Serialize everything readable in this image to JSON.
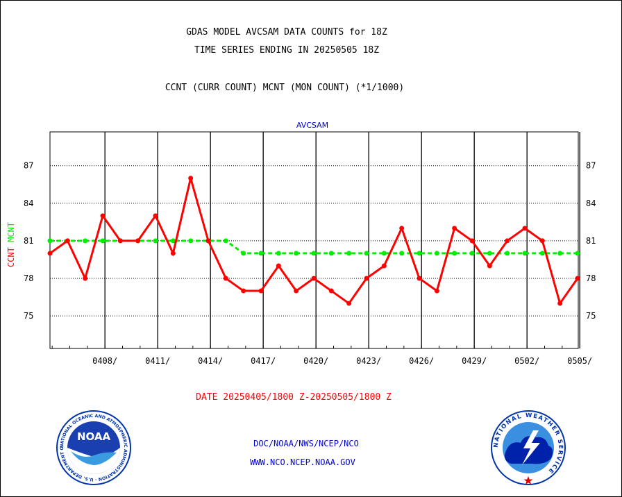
{
  "header": {
    "title_line1": "GDAS MODEL AVCSAM DATA COUNTS for 18Z",
    "title_line2": "TIME SERIES ENDING IN 20250505 18Z",
    "subtitle": "CCNT (CURR COUNT) MCNT (MON COUNT) (*1/1000)"
  },
  "footer": {
    "date_range": "DATE 20250405/1800 Z-20250505/1800 Z",
    "org_line": "DOC/NOAA/NWS/NCEP/NCO",
    "url_line": "WWW.NCO.NCEP.NOAA.GOV"
  },
  "logos": {
    "noaa": {
      "name": "NOAA",
      "ring_text": "NATIONAL OCEANIC AND ATMOSPHERIC ADMINISTRATION · U.S. DEPARTMENT OF COMMERCE"
    },
    "nws": {
      "ring_text": "NATIONAL WEATHER SERVICE"
    }
  },
  "chart_data": {
    "type": "line",
    "title": "AVCSAM",
    "ylabel_ccnt": "CCNT",
    "ylabel_mcnt": "MCNT",
    "ylim": [
      72.4,
      89.7
    ],
    "yticks": [
      75,
      78,
      81,
      84,
      87
    ],
    "x_tick_labels": [
      "0408/",
      "0411/",
      "0414/",
      "0417/",
      "0420/",
      "0423/",
      "0426/",
      "0429/",
      "0502/",
      "0505/"
    ],
    "x_days": [
      "0405",
      "0406",
      "0407",
      "0408",
      "0409",
      "0410",
      "0411",
      "0412",
      "0413",
      "0414",
      "0415",
      "0416",
      "0417",
      "0418",
      "0419",
      "0420",
      "0421",
      "0422",
      "0423",
      "0424",
      "0425",
      "0426",
      "0427",
      "0428",
      "0429",
      "0430",
      "0501",
      "0502",
      "0503",
      "0504",
      "0505"
    ],
    "grid": true,
    "colors": {
      "ccnt": "#ff0000",
      "mcnt": "#00ee00",
      "axes": "#000000",
      "title": "#0000cc"
    },
    "series": [
      {
        "name": "CCNT",
        "values": [
          80,
          81,
          78,
          83,
          81,
          81,
          83,
          80,
          86,
          81,
          78,
          77,
          77,
          79,
          77,
          78,
          77,
          76,
          78,
          79,
          82,
          78,
          77,
          82,
          81,
          79,
          81,
          82,
          81,
          76,
          78
        ]
      },
      {
        "name": "MCNT",
        "values": [
          81,
          81,
          81,
          81,
          81,
          81,
          81,
          81,
          81,
          81,
          81,
          80,
          80,
          80,
          80,
          80,
          80,
          80,
          80,
          80,
          80,
          80,
          80,
          80,
          80,
          80,
          80,
          80,
          80,
          80,
          80
        ]
      }
    ]
  }
}
